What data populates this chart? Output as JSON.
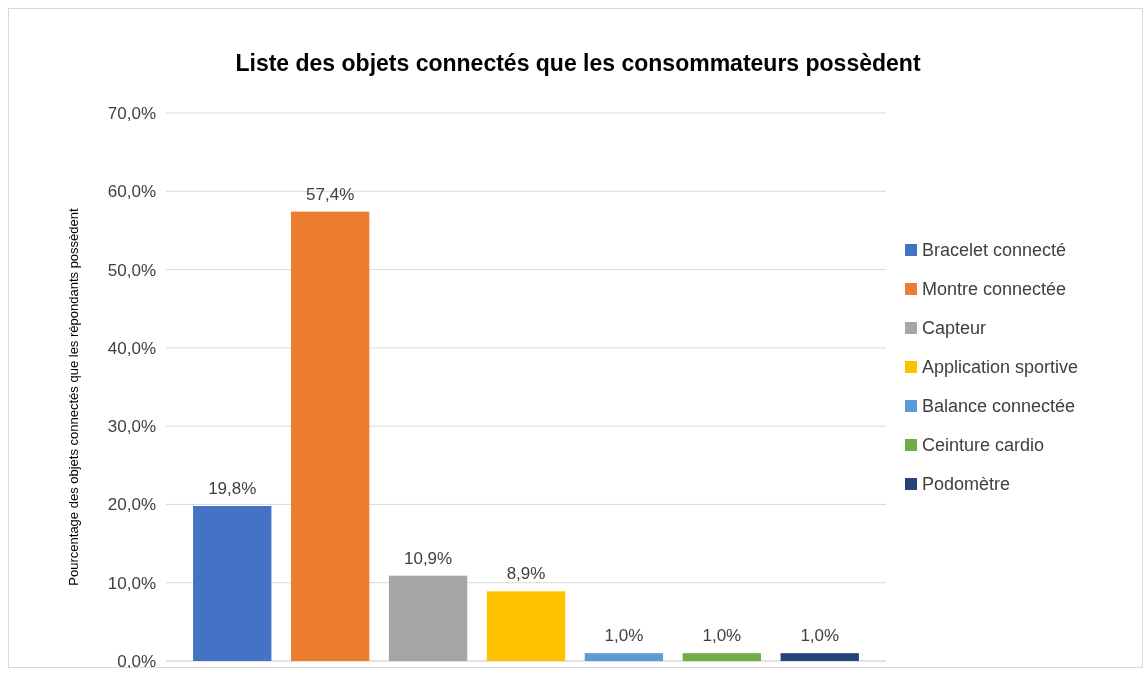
{
  "chart_data": {
    "type": "bar",
    "title": "Liste des objets connectés que les consommateurs possèdent",
    "ylabel": "Pourcentage des objets connectés que les répondants possèdent",
    "categories": [
      null
    ],
    "series": [
      {
        "name": "Bracelet connecté",
        "color": "#4472c4",
        "values": [
          19.8
        ],
        "value_labels": [
          "19,8%"
        ]
      },
      {
        "name": "Montre connectée",
        "color": "#ed7d31",
        "values": [
          57.4
        ],
        "value_labels": [
          "57,4%"
        ]
      },
      {
        "name": "Capteur",
        "color": "#a5a5a5",
        "values": [
          10.9
        ],
        "value_labels": [
          "10,9%"
        ]
      },
      {
        "name": "Application sportive",
        "color": "#ffc000",
        "values": [
          8.9
        ],
        "value_labels": [
          "8,9%"
        ]
      },
      {
        "name": "Balance connectée",
        "color": "#5b9bd5",
        "values": [
          1.0
        ],
        "value_labels": [
          "1,0%"
        ]
      },
      {
        "name": "Ceinture cardio",
        "color": "#70ad47",
        "values": [
          1.0
        ],
        "value_labels": [
          "1,0%"
        ]
      },
      {
        "name": "Podomètre",
        "color": "#264478",
        "values": [
          1.0
        ],
        "value_labels": [
          "1,0%"
        ]
      }
    ],
    "ylim": [
      0,
      70
    ],
    "yticks": [
      {
        "value": 0,
        "label": "0,0%"
      },
      {
        "value": 10,
        "label": "10,0%"
      },
      {
        "value": 20,
        "label": "20,0%"
      },
      {
        "value": 30,
        "label": "30,0%"
      },
      {
        "value": 40,
        "label": "40,0%"
      },
      {
        "value": 50,
        "label": "50,0%"
      },
      {
        "value": 60,
        "label": "60,0%"
      },
      {
        "value": 70,
        "label": "70,0%"
      }
    ],
    "grid": "y",
    "legend": "right"
  }
}
